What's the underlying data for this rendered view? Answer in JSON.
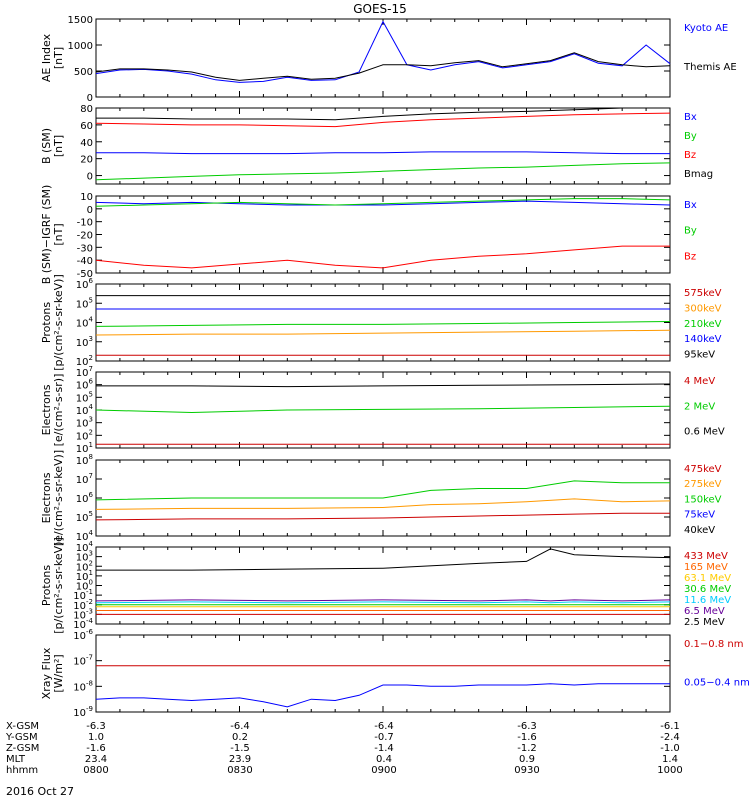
{
  "title": "GOES-15",
  "footer": {
    "rows": [
      {
        "label": "X-GSM",
        "values": [
          "-6.3",
          "-6.4",
          "-6.4",
          "-6.3",
          "-6.1"
        ]
      },
      {
        "label": "Y-GSM",
        "values": [
          "1.0",
          "0.2",
          "-0.7",
          "-1.6",
          "-2.4"
        ]
      },
      {
        "label": "Z-GSM",
        "values": [
          "-1.6",
          "-1.5",
          "-1.4",
          "-1.2",
          "-1.0"
        ]
      },
      {
        "label": "MLT",
        "values": [
          "23.4",
          "23.9",
          "0.4",
          "0.9",
          "1.4"
        ]
      },
      {
        "label": "hhmm",
        "values": [
          "0800",
          "0830",
          "0900",
          "0930",
          "1000"
        ]
      }
    ],
    "date": "2016 Oct 27"
  },
  "chart_data": [
    {
      "type": "line",
      "id": "ae",
      "ylabel": [
        "AE Index",
        "[nT]"
      ],
      "ylim": [
        0,
        1500
      ],
      "ticks": [
        "0",
        "500",
        "1000",
        "1500"
      ],
      "x_minutes": [
        0,
        5,
        10,
        15,
        20,
        25,
        30,
        35,
        40,
        45,
        50,
        55,
        60,
        65,
        70,
        75,
        80,
        85,
        90,
        95,
        100,
        105,
        110,
        115,
        120
      ],
      "series": [
        {
          "name": "Kyoto AE",
          "color": "#0000ff",
          "values": [
            450,
            520,
            530,
            500,
            440,
            330,
            280,
            300,
            380,
            320,
            330,
            480,
            1450,
            620,
            520,
            620,
            680,
            560,
            620,
            680,
            830,
            650,
            600,
            1000,
            640
          ]
        },
        {
          "name": "Themis AE",
          "color": "#000000",
          "values": [
            480,
            540,
            540,
            520,
            480,
            380,
            320,
            360,
            400,
            340,
            360,
            460,
            620,
            620,
            600,
            660,
            700,
            580,
            640,
            700,
            850,
            680,
            620,
            580,
            600
          ]
        }
      ]
    },
    {
      "type": "line",
      "id": "bsm",
      "ylabel": [
        "B (SM)",
        "[nT]"
      ],
      "ylim": [
        -10,
        80
      ],
      "ticks": [
        "0",
        "20",
        "40",
        "60",
        "80"
      ],
      "x_minutes": [
        0,
        10,
        20,
        30,
        40,
        50,
        60,
        70,
        80,
        90,
        100,
        110,
        120
      ],
      "series": [
        {
          "name": "Bx",
          "color": "#0000ff",
          "values": [
            27,
            27,
            26,
            26,
            26,
            27,
            27,
            28,
            28,
            28,
            27,
            26,
            26
          ]
        },
        {
          "name": "By",
          "color": "#00cc00",
          "values": [
            -5,
            -3,
            -1,
            1,
            2,
            3,
            5,
            7,
            9,
            10,
            12,
            14,
            15
          ]
        },
        {
          "name": "Bz",
          "color": "#ff0000",
          "values": [
            62,
            61,
            60,
            60,
            59,
            58,
            63,
            66,
            68,
            70,
            72,
            73,
            74
          ]
        },
        {
          "name": "Bmag",
          "color": "#000000",
          "values": [
            68,
            68,
            67,
            67,
            67,
            66,
            70,
            73,
            75,
            76,
            78,
            80,
            80
          ]
        }
      ]
    },
    {
      "type": "line",
      "id": "bdiff",
      "ylabel": [
        "B (SM)−IGRF (SM)",
        "[nT]"
      ],
      "ylim": [
        -50,
        10
      ],
      "ticks": [
        "-50",
        "-40",
        "-30",
        "-20",
        "-10",
        "0",
        "10"
      ],
      "x_minutes": [
        0,
        10,
        20,
        30,
        40,
        50,
        60,
        70,
        80,
        90,
        100,
        110,
        120
      ],
      "series": [
        {
          "name": "Bx",
          "color": "#0000ff",
          "values": [
            5,
            4,
            5,
            4,
            3,
            3,
            3,
            4,
            5,
            6,
            5,
            4,
            3
          ]
        },
        {
          "name": "By",
          "color": "#00cc00",
          "values": [
            2,
            3,
            4,
            5,
            4,
            3,
            4,
            5,
            6,
            7,
            8,
            8,
            7
          ]
        },
        {
          "name": "Bz",
          "color": "#ff0000",
          "values": [
            -40,
            -44,
            -46,
            -43,
            -40,
            -44,
            -46,
            -40,
            -37,
            -35,
            -32,
            -29,
            -29
          ]
        }
      ]
    },
    {
      "type": "line",
      "id": "protons-low",
      "log": true,
      "ylabel": [
        "Protons",
        "[p/(cm²-s-sr-keV)]"
      ],
      "ylim_exp": [
        2,
        6
      ],
      "x_minutes": [
        0,
        20,
        40,
        60,
        80,
        100,
        120
      ],
      "series": [
        {
          "name": "575keV",
          "color": "#cc0000",
          "values": [
            2.3,
            2.3,
            2.3,
            2.3,
            2.3,
            2.3,
            2.3
          ]
        },
        {
          "name": "300keV",
          "color": "#ff9900",
          "values": [
            3.35,
            3.4,
            3.4,
            3.45,
            3.5,
            3.55,
            3.6
          ]
        },
        {
          "name": "210keV",
          "color": "#00cc00",
          "values": [
            3.8,
            3.85,
            3.9,
            3.9,
            3.95,
            4.0,
            4.05
          ]
        },
        {
          "name": "140keV",
          "color": "#0000ff",
          "values": [
            4.7,
            4.7,
            4.7,
            4.7,
            4.7,
            4.7,
            4.7
          ]
        },
        {
          "name": "95keV",
          "color": "#000000",
          "values": [
            5.4,
            5.4,
            5.4,
            5.4,
            5.4,
            5.4,
            5.4
          ]
        }
      ]
    },
    {
      "type": "line",
      "id": "electrons-high",
      "log": true,
      "ylabel": [
        "Electrons",
        "[e/(cm²-s-sr)]"
      ],
      "ylim_exp": [
        1,
        7
      ],
      "x_minutes": [
        0,
        20,
        40,
        60,
        80,
        100,
        120
      ],
      "series": [
        {
          "name": "4 MeV",
          "color": "#cc0000",
          "values": [
            1.3,
            1.3,
            1.3,
            1.3,
            1.3,
            1.3,
            1.3
          ]
        },
        {
          "name": "2 MeV",
          "color": "#00cc00",
          "values": [
            4.0,
            3.8,
            4.0,
            4.05,
            4.1,
            4.2,
            4.3
          ]
        },
        {
          "name": "0.6 MeV",
          "color": "#000000",
          "values": [
            5.9,
            5.9,
            5.85,
            5.9,
            5.95,
            6.0,
            6.05
          ]
        }
      ]
    },
    {
      "type": "line",
      "id": "electrons-low",
      "log": true,
      "ylabel": [
        "Electrons",
        "[e/(cm²-s-sr-keV)]"
      ],
      "ylim_exp": [
        4,
        8
      ],
      "x_minutes": [
        0,
        20,
        40,
        60,
        70,
        80,
        90,
        100,
        110,
        120
      ],
      "series": [
        {
          "name": "475keV",
          "color": "#cc0000",
          "values": [
            4.85,
            4.9,
            4.9,
            4.95,
            5.0,
            5.05,
            5.1,
            5.15,
            5.2,
            5.2
          ]
        },
        {
          "name": "275keV",
          "color": "#ff9900",
          "values": [
            5.4,
            5.45,
            5.45,
            5.5,
            5.65,
            5.7,
            5.8,
            5.95,
            5.8,
            5.85
          ]
        },
        {
          "name": "150keV",
          "color": "#00cc00",
          "values": [
            5.9,
            6.0,
            6.0,
            6.0,
            6.4,
            6.5,
            6.5,
            6.9,
            6.8,
            6.8
          ]
        },
        {
          "name": "75keV",
          "color": "#0000ff",
          "values": [
            null,
            null,
            null,
            null,
            null,
            null,
            null,
            null,
            null,
            null
          ]
        },
        {
          "name": "40keV",
          "color": "#000000",
          "values": [
            null,
            null,
            null,
            null,
            null,
            null,
            null,
            null,
            null,
            null
          ]
        }
      ]
    },
    {
      "type": "line",
      "id": "protons-high",
      "log": true,
      "ylabel": [
        "Protons",
        "[p/(cm²-s-sr-keV)]"
      ],
      "ylim_exp": [
        -4,
        4
      ],
      "x_minutes": [
        0,
        20,
        40,
        60,
        80,
        90,
        95,
        100,
        110,
        120
      ],
      "series": [
        {
          "name": "433 MeV",
          "color": "#cc0000",
          "values": [
            -3.0,
            -3.0,
            -3.0,
            -3.0,
            -3.0,
            -3.0,
            -3.0,
            -3.0,
            -3.0,
            -3.0
          ]
        },
        {
          "name": "165 MeV",
          "color": "#ff6600",
          "values": [
            -2.6,
            -2.6,
            -2.6,
            -2.6,
            -2.6,
            -2.6,
            -2.6,
            -2.6,
            -2.6,
            -2.6
          ]
        },
        {
          "name": "63.1 MeV",
          "color": "#ffcc00",
          "values": [
            -2.2,
            -2.2,
            -2.2,
            -2.2,
            -2.2,
            -2.2,
            -2.2,
            -2.2,
            -2.2,
            -2.2
          ]
        },
        {
          "name": "30.6 MeV",
          "color": "#00cc00",
          "values": [
            -2.0,
            -2.0,
            -2.0,
            -2.0,
            -2.0,
            -2.0,
            -2.0,
            -2.0,
            -2.0,
            -2.0
          ]
        },
        {
          "name": "11.6 MeV",
          "color": "#00ccff",
          "values": [
            -1.8,
            -1.7,
            -1.8,
            -1.7,
            -1.8,
            -1.7,
            -1.8,
            -1.7,
            -1.8,
            -1.7
          ]
        },
        {
          "name": "6.5 MeV",
          "color": "#660099",
          "values": [
            -1.6,
            -1.5,
            -1.6,
            -1.5,
            -1.6,
            -1.5,
            -1.6,
            -1.5,
            -1.6,
            -1.5
          ]
        },
        {
          "name": "2.5 MeV",
          "color": "#000000",
          "values": [
            1.6,
            1.6,
            1.7,
            1.8,
            2.3,
            2.5,
            3.8,
            3.2,
            3.0,
            2.9
          ]
        }
      ]
    },
    {
      "type": "line",
      "id": "xray",
      "log": true,
      "ylabel": [
        "Xray Flux",
        "[W/m²]"
      ],
      "ylim_exp": [
        -9,
        -6
      ],
      "x_minutes": [
        0,
        5,
        10,
        15,
        20,
        25,
        30,
        35,
        40,
        45,
        50,
        55,
        60,
        65,
        70,
        75,
        80,
        85,
        90,
        95,
        100,
        105,
        110,
        115,
        120
      ],
      "series": [
        {
          "name": "0.1−0.8 nm",
          "color": "#cc0000",
          "values": [
            -7.2,
            -7.2,
            -7.2,
            -7.2,
            -7.2,
            -7.2,
            -7.2,
            -7.2,
            -7.2,
            -7.2,
            -7.2,
            -7.2,
            -7.2,
            -7.2,
            -7.2,
            -7.2,
            -7.2,
            -7.2,
            -7.2,
            -7.2,
            -7.2,
            -7.2,
            -7.2,
            -7.2,
            -7.2
          ]
        },
        {
          "name": "0.05−0.4 nm",
          "color": "#0000ff",
          "values": [
            -8.5,
            -8.45,
            -8.45,
            -8.5,
            -8.55,
            -8.5,
            -8.45,
            -8.6,
            -8.8,
            -8.5,
            -8.55,
            -8.35,
            -7.95,
            -7.95,
            -8.0,
            -8.0,
            -7.95,
            -7.95,
            -7.95,
            -7.9,
            -7.95,
            -7.9,
            -7.9,
            -7.9,
            -7.9
          ]
        }
      ]
    }
  ]
}
